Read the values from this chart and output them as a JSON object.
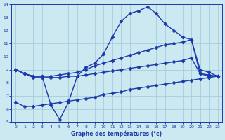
{
  "line1_x": [
    0,
    1,
    2,
    3,
    4,
    5,
    6,
    7,
    8,
    9,
    10,
    11,
    12,
    13,
    14,
    15,
    16,
    17,
    18,
    19,
    20,
    21,
    22,
    23
  ],
  "line1_y": [
    9.0,
    8.7,
    8.5,
    8.5,
    6.3,
    5.2,
    6.5,
    8.5,
    9.2,
    9.5,
    10.2,
    11.5,
    12.7,
    13.3,
    13.5,
    13.8,
    13.3,
    12.5,
    12.0,
    11.5,
    11.3,
    8.7,
    8.6,
    8.5
  ],
  "line2_x": [
    0,
    1,
    2,
    3,
    4,
    5,
    6,
    7,
    8,
    9,
    10,
    11,
    12,
    13,
    14,
    15,
    16,
    17,
    18,
    19,
    20,
    21,
    22,
    23
  ],
  "line2_y": [
    9.0,
    8.7,
    8.5,
    8.5,
    8.5,
    8.6,
    8.7,
    8.8,
    9.0,
    9.3,
    9.5,
    9.7,
    9.9,
    10.1,
    10.3,
    10.5,
    10.7,
    10.9,
    11.0,
    11.1,
    11.3,
    9.0,
    8.8,
    8.5
  ],
  "line3_x": [
    0,
    1,
    2,
    3,
    4,
    5,
    6,
    7,
    8,
    9,
    10,
    11,
    12,
    13,
    14,
    15,
    16,
    17,
    18,
    19,
    20,
    21,
    22,
    23
  ],
  "line3_y": [
    9.0,
    8.7,
    8.4,
    8.4,
    8.4,
    8.4,
    8.5,
    8.5,
    8.6,
    8.7,
    8.8,
    8.9,
    9.0,
    9.1,
    9.2,
    9.3,
    9.4,
    9.5,
    9.6,
    9.7,
    9.9,
    8.7,
    8.5,
    8.5
  ],
  "line4_x": [
    0,
    1,
    2,
    3,
    4,
    5,
    6,
    7,
    8,
    9,
    10,
    11,
    12,
    13,
    14,
    15,
    16,
    17,
    18,
    19,
    20,
    21,
    22,
    23
  ],
  "line4_y": [
    6.5,
    6.2,
    6.2,
    6.3,
    6.4,
    6.5,
    6.6,
    6.7,
    6.8,
    6.9,
    7.1,
    7.2,
    7.3,
    7.5,
    7.6,
    7.7,
    7.8,
    7.9,
    8.0,
    8.1,
    8.2,
    8.3,
    8.4,
    8.5
  ],
  "bg_color": "#cce8f0",
  "line_color": "#1a3aab",
  "grid_color": "#9dc8d8",
  "xlabel": "Graphe des températures (°c)",
  "xlim": [
    -0.5,
    23.5
  ],
  "ylim": [
    5,
    14
  ],
  "yticks": [
    5,
    6,
    7,
    8,
    9,
    10,
    11,
    12,
    13,
    14
  ],
  "xticks": [
    0,
    1,
    2,
    3,
    4,
    5,
    6,
    7,
    8,
    9,
    10,
    11,
    12,
    13,
    14,
    15,
    16,
    17,
    18,
    19,
    20,
    21,
    22,
    23
  ]
}
